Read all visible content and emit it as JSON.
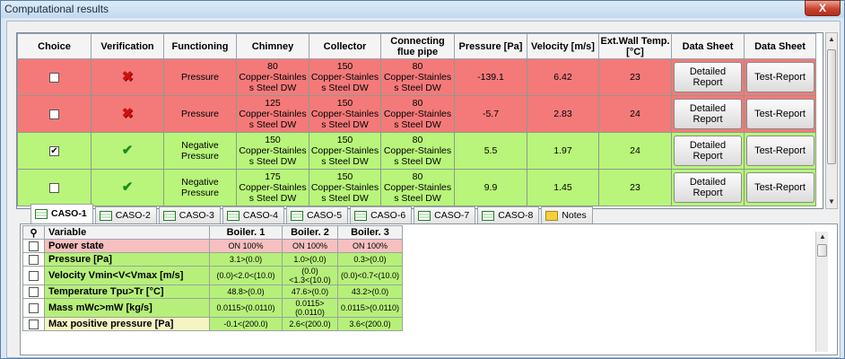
{
  "window": {
    "title": "Computational results",
    "close_label": "X"
  },
  "results": {
    "headers": [
      "Choice",
      "Verification",
      "Functioning",
      "Chimney",
      "Collector",
      "Connecting flue pipe",
      "Pressure [Pa]",
      "Velocity [m/s]",
      "Ext.Wall Temp. [°C]",
      "Data Sheet",
      "Data Sheet"
    ],
    "rows": [
      {
        "status": "red",
        "checked": "",
        "verification": "✖",
        "functioning": "Pressure",
        "chimney": "80\nCopper-Stainles\ns Steel DW",
        "collector": "150\nCopper-Stainles\ns Steel DW",
        "flue": "80\nCopper-Stainles\ns Steel DW",
        "pressure": "-139.1",
        "velocity": "6.42",
        "temp": "23",
        "detail_btn": "Detailed Report",
        "test_btn": "Test-Report"
      },
      {
        "status": "red",
        "checked": "",
        "verification": "✖",
        "functioning": "Pressure",
        "chimney": "125\nCopper-Stainles\ns Steel DW",
        "collector": "150\nCopper-Stainles\ns Steel DW",
        "flue": "80\nCopper-Stainles\ns Steel DW",
        "pressure": "-5.7",
        "velocity": "2.83",
        "temp": "24",
        "detail_btn": "Detailed Report",
        "test_btn": "Test-Report"
      },
      {
        "status": "green",
        "checked": "✔",
        "verification": "✔",
        "functioning": "Negative\nPressure",
        "chimney": "150\nCopper-Stainles\ns Steel DW",
        "collector": "150\nCopper-Stainles\ns Steel DW",
        "flue": "80\nCopper-Stainles\ns Steel DW",
        "pressure": "5.5",
        "velocity": "1.97",
        "temp": "24",
        "detail_btn": "Detailed Report",
        "test_btn": "Test-Report"
      },
      {
        "status": "green",
        "checked": "",
        "verification": "✔",
        "functioning": "Negative\nPressure",
        "chimney": "175\nCopper-Stainles\ns Steel DW",
        "collector": "150\nCopper-Stainles\ns Steel DW",
        "flue": "80\nCopper-Stainles\ns Steel DW",
        "pressure": "9.9",
        "velocity": "1.45",
        "temp": "23",
        "detail_btn": "Detailed Report",
        "test_btn": "Test-Report"
      }
    ]
  },
  "tabs": [
    {
      "label": "CASO-1",
      "active": true,
      "icon": "list-icon"
    },
    {
      "label": "CASO-2",
      "active": false,
      "icon": "list-icon"
    },
    {
      "label": "CASO-3",
      "active": false,
      "icon": "list-icon"
    },
    {
      "label": "CASO-4",
      "active": false,
      "icon": "list-icon"
    },
    {
      "label": "CASO-5",
      "active": false,
      "icon": "list-icon"
    },
    {
      "label": "CASO-6",
      "active": false,
      "icon": "list-icon"
    },
    {
      "label": "CASO-7",
      "active": false,
      "icon": "list-icon"
    },
    {
      "label": "CASO-8",
      "active": false,
      "icon": "list-icon"
    },
    {
      "label": "Notes",
      "active": false,
      "icon": "notes-icon"
    }
  ],
  "detail": {
    "pin_glyph": "⚲",
    "headers": [
      "Variable",
      "Boiler. 1",
      "Boiler. 2",
      "Boiler. 3"
    ],
    "rows": [
      {
        "style": "pink",
        "variable": "Power state",
        "b1": "ON 100%",
        "b2": "ON 100%",
        "b3": "ON 100%"
      },
      {
        "style": "lgreen",
        "variable": "Pressure [Pa]",
        "b1": "3.1>(0.0)",
        "b2": "1.0>(0.0)",
        "b3": "0.3>(0.0)"
      },
      {
        "style": "lgreen",
        "variable": "Velocity Vmin<V<Vmax [m/s]",
        "b1": "(0.0)<2.0<(10.0)",
        "b2": "(0.0)<1.3<(10.0)",
        "b3": "(0.0)<0.7<(10.0)"
      },
      {
        "style": "lgreen",
        "variable": "Temperature Tpu>Tr [°C]",
        "b1": "48.8>(0.0)",
        "b2": "47.6>(0.0)",
        "b3": "43.2>(0.0)"
      },
      {
        "style": "lgreen",
        "variable": "Mass mWc>mW [kg/s]",
        "b1": "0.0115>(0.0110)",
        "b2": "0.0115>(0.0110)",
        "b3": "0.0115>(0.0110)"
      },
      {
        "style": "ylw",
        "variable": "Max positive pressure [Pa]",
        "b1": "-0.1<(200.0)",
        "b2": "2.6<(200.0)",
        "b3": "3.6<(200.0)"
      }
    ]
  },
  "colors": {
    "fail_row": "#f47a7a",
    "pass_row": "#b8f57a",
    "highlight": "#f6c0c0"
  }
}
